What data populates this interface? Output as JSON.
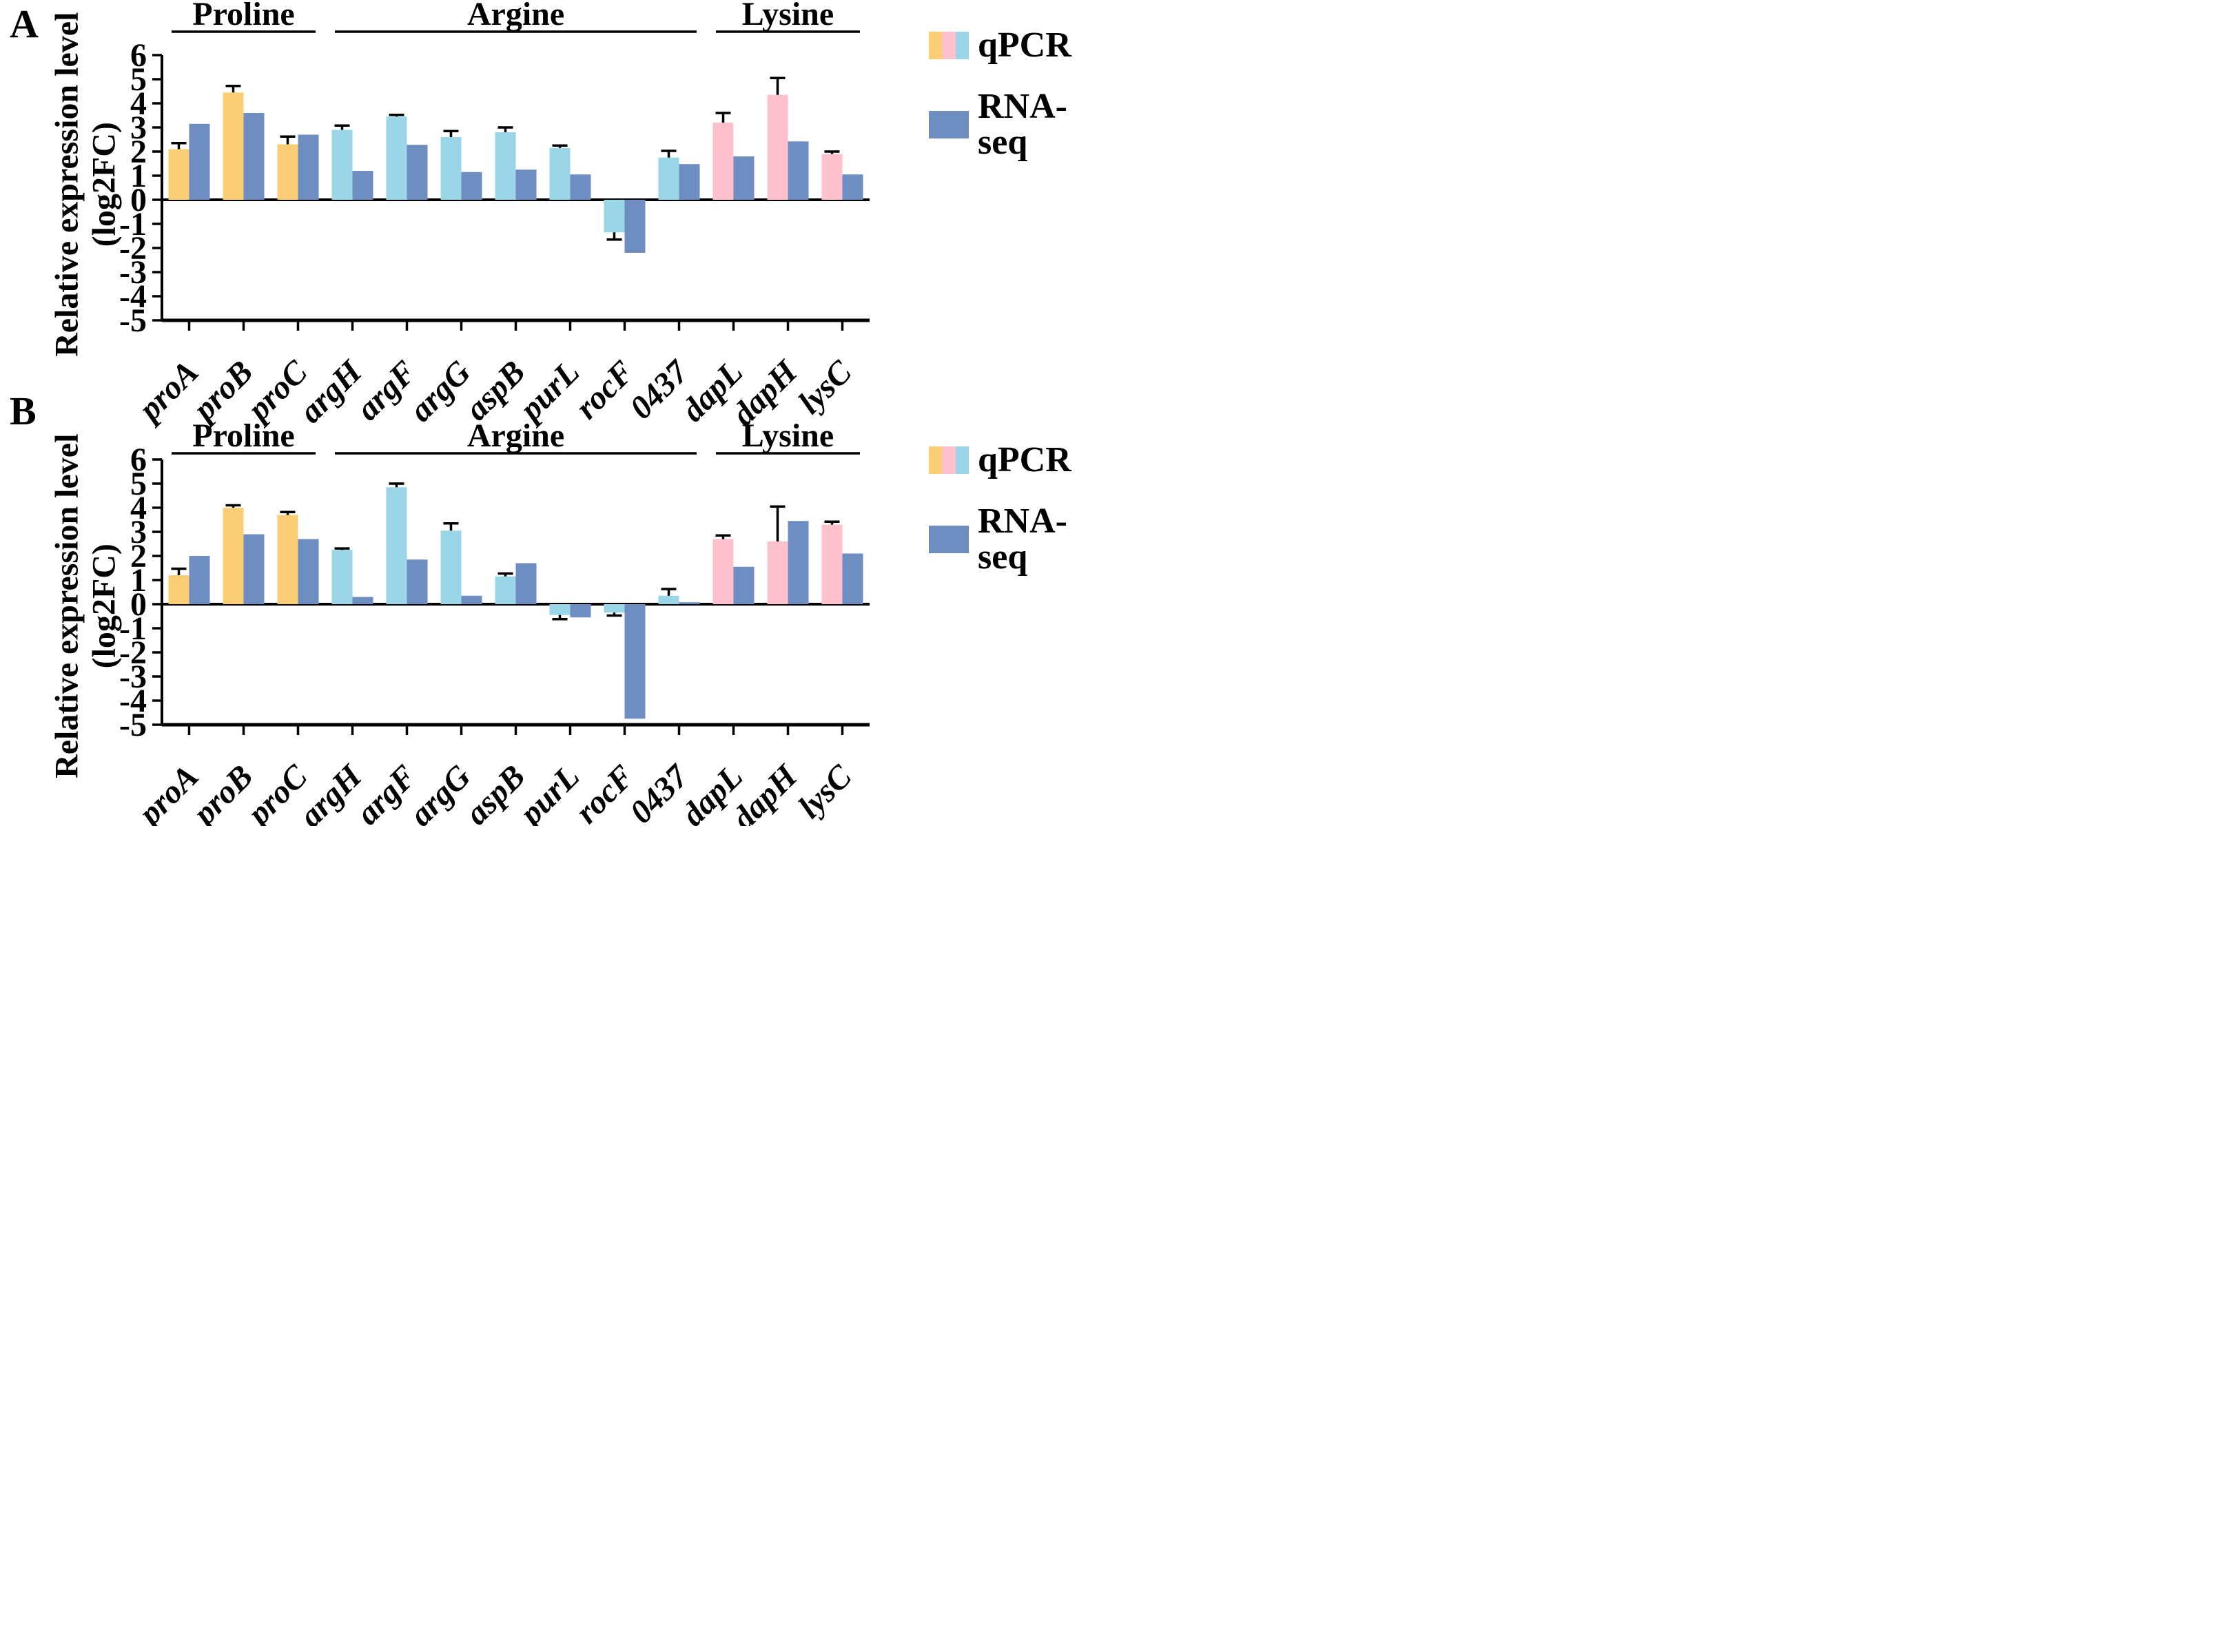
{
  "figure": {
    "background": "#FFFFFF",
    "y_axis_label_line1": "Relative expression level",
    "y_axis_label_line2": "(log2FC)",
    "legend": {
      "qpcr_label": "qPCR",
      "rnaseq_label": "RNA-seq",
      "qpcr_swatch_colors": [
        "#FBCD75",
        "#FFC0CD",
        "#9AD5E8"
      ],
      "rnaseq_swatch_color": "#6E8EC1"
    },
    "colors": {
      "qpcr_by_group": {
        "Proline": "#FBCD75",
        "Argine": "#9AD5E8",
        "Lysine": "#FFC0CD"
      },
      "rnaseq": "#6E8EC1",
      "axis": "#000000"
    }
  },
  "panels": [
    {
      "letter": "A"
    },
    {
      "letter": "B"
    }
  ],
  "chart_data": [
    {
      "type": "bar",
      "panel": "A",
      "title": "",
      "xlabel": "",
      "ylabel": "Relative expression level (log2FC)",
      "ylim": [
        -5,
        6
      ],
      "yticks": [
        6,
        5,
        4,
        3,
        2,
        1,
        0,
        -1,
        -2,
        -3,
        -4,
        -5
      ],
      "grid": false,
      "legend_position": "top-right",
      "categories": [
        "proA",
        "proB",
        "proC",
        "argH",
        "argF",
        "argG",
        "aspB",
        "purL",
        "rocF",
        "0437",
        "dapL",
        "dapH",
        "lysC"
      ],
      "groups": [
        {
          "label": "Proline",
          "genes": [
            "proA",
            "proB",
            "proC"
          ]
        },
        {
          "label": "Argine",
          "genes": [
            "argH",
            "argF",
            "argG",
            "aspB",
            "purL",
            "rocF",
            "0437"
          ]
        },
        {
          "label": "Lysine",
          "genes": [
            "dapL",
            "dapH",
            "lysC"
          ]
        }
      ],
      "series": [
        {
          "name": "qPCR",
          "values": [
            2.1,
            4.45,
            2.3,
            2.9,
            3.45,
            2.6,
            2.8,
            2.15,
            -1.35,
            1.75,
            3.2,
            4.35,
            1.9
          ],
          "errors": [
            0.25,
            0.27,
            0.32,
            0.18,
            0.07,
            0.25,
            0.2,
            0.1,
            0.3,
            0.28,
            0.4,
            0.7,
            0.1
          ]
        },
        {
          "name": "RNA-seq",
          "values": [
            3.15,
            3.6,
            2.7,
            1.2,
            2.28,
            1.15,
            1.25,
            1.05,
            -2.2,
            1.48,
            1.8,
            2.42,
            1.05
          ],
          "errors": null
        }
      ]
    },
    {
      "type": "bar",
      "panel": "B",
      "title": "",
      "xlabel": "",
      "ylabel": "Relative expression level (log2FC)",
      "ylim": [
        -5,
        6
      ],
      "yticks": [
        6,
        5,
        4,
        3,
        2,
        1,
        0,
        -1,
        -2,
        -3,
        -4,
        -5
      ],
      "grid": false,
      "legend_position": "top-right",
      "categories": [
        "proA",
        "proB",
        "proC",
        "argH",
        "argF",
        "argG",
        "aspB",
        "purL",
        "rocF",
        "0437",
        "dapL",
        "dapH",
        "lysC"
      ],
      "groups": [
        {
          "label": "Proline",
          "genes": [
            "proA",
            "proB",
            "proC"
          ]
        },
        {
          "label": "Argine",
          "genes": [
            "argH",
            "argF",
            "argG",
            "aspB",
            "purL",
            "rocF",
            "0437"
          ]
        },
        {
          "label": "Lysine",
          "genes": [
            "dapL",
            "dapH",
            "lysC"
          ]
        }
      ],
      "series": [
        {
          "name": "qPCR",
          "values": [
            1.2,
            4.0,
            3.7,
            2.25,
            4.85,
            3.05,
            1.15,
            -0.45,
            -0.35,
            0.35,
            2.7,
            2.6,
            3.3
          ],
          "errors": [
            0.27,
            0.1,
            0.12,
            0.06,
            0.15,
            0.3,
            0.12,
            0.17,
            0.12,
            0.28,
            0.15,
            1.45,
            0.12
          ]
        },
        {
          "name": "RNA-seq",
          "values": [
            2.0,
            2.9,
            2.7,
            0.3,
            1.85,
            0.35,
            1.7,
            -0.55,
            -4.75,
            0.08,
            1.55,
            3.45,
            2.1
          ],
          "errors": null
        }
      ]
    }
  ]
}
